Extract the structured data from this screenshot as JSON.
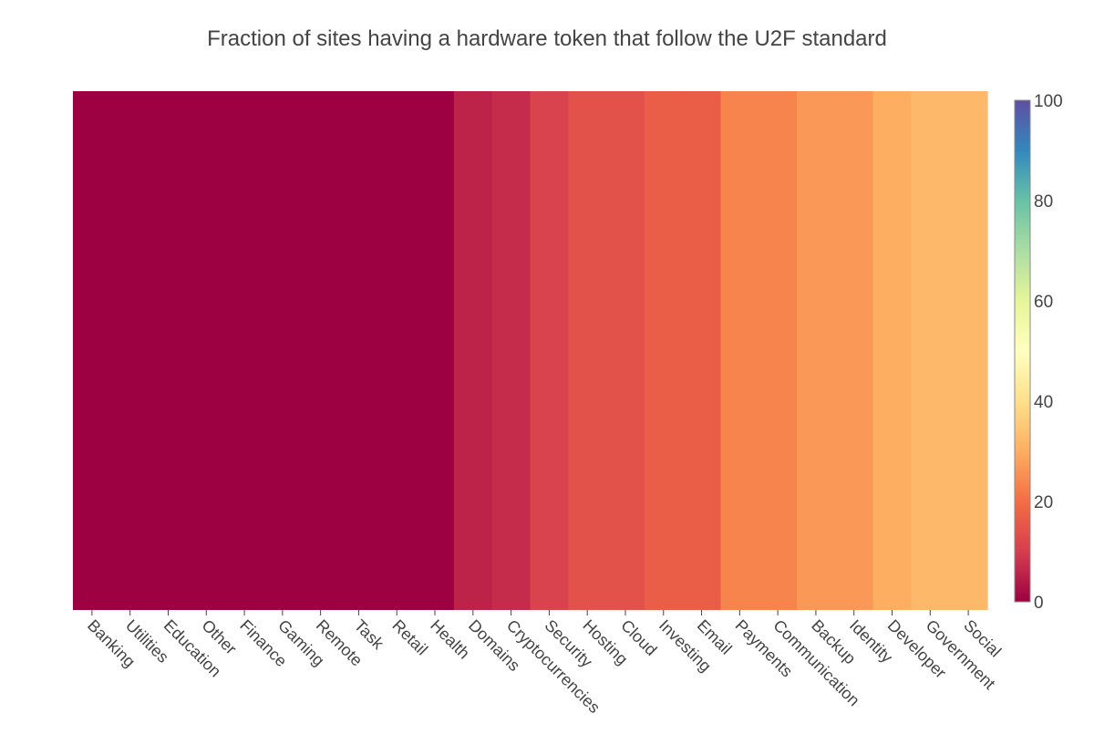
{
  "chart_data": {
    "type": "heatmap",
    "title": "Fraction of sites having a hardware token that follow the U2F standard",
    "categories": [
      "Banking",
      "Utilities",
      "Education",
      "Other",
      "Finance",
      "Gaming",
      "Remote",
      "Task",
      "Retail",
      "Health",
      "Domains",
      "Cryptocurrencies",
      "Security",
      "Hosting",
      "Cloud",
      "Investing",
      "Email",
      "Payments",
      "Communication",
      "Backup",
      "Identity",
      "Developer",
      "Government",
      "Social"
    ],
    "values": [
      0,
      0,
      0,
      0,
      0,
      0,
      0,
      0,
      0,
      0,
      5.6,
      7.1,
      11.1,
      14.3,
      14.3,
      16.7,
      16.7,
      23.5,
      23.5,
      26.7,
      26.7,
      30,
      32,
      32
    ],
    "colorscale": "Spectral",
    "zrange": [
      0,
      100
    ],
    "colorbar_ticks": [
      "0",
      "20",
      "40",
      "60",
      "80",
      "100"
    ],
    "colorscale_stops": [
      "#9e0142",
      "#d53e4f",
      "#f46d43",
      "#fdae61",
      "#fee08b",
      "#ffffbf",
      "#e6f598",
      "#abdda4",
      "#66c2a5",
      "#3288bd",
      "#5e4fa2"
    ]
  }
}
